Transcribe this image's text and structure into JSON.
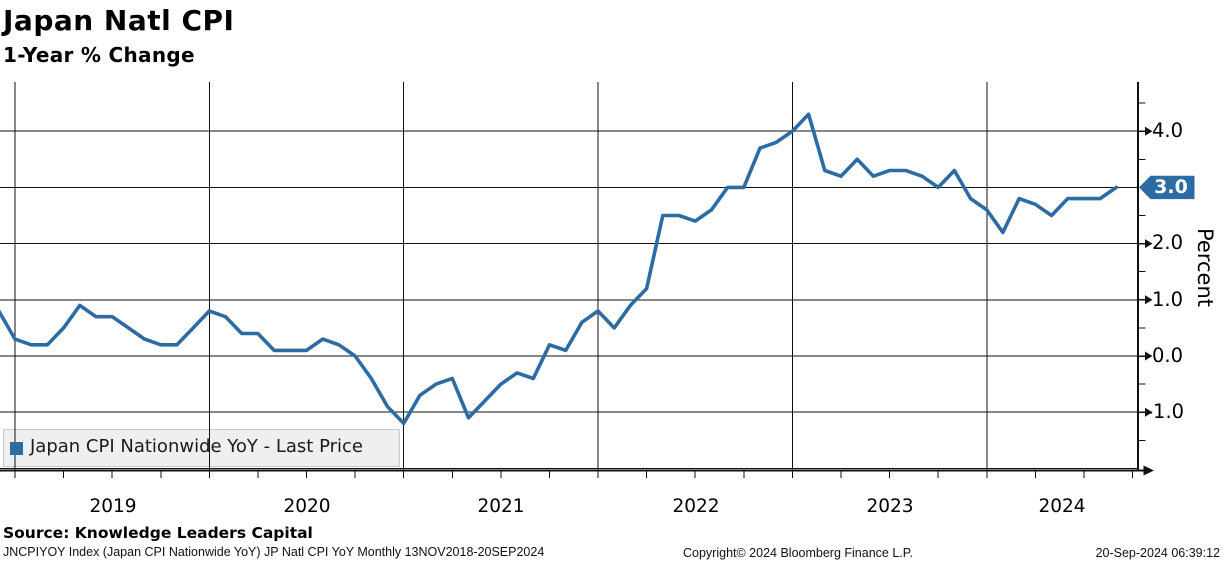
{
  "header": {
    "title": "Japan Natl CPI",
    "subtitle": "1-Year % Change"
  },
  "chart_data": {
    "type": "line",
    "title": "Japan Natl CPI",
    "subtitle": "1-Year % Change",
    "ylabel": "Percent",
    "grid": true,
    "ylim": [
      -2.05,
      4.88
    ],
    "x_tick_labels": [
      "2019",
      "2020",
      "2021",
      "2022",
      "2023",
      "2024"
    ],
    "y_tick_labels": [
      "4.0",
      "3.0",
      "2.0",
      "1.0",
      "0.0",
      "-1.0"
    ],
    "y_major_ticks": [
      4.0,
      3.0,
      2.0,
      1.0,
      0.0,
      -1.0
    ],
    "y_minor_ticks": [
      4.5,
      3.5,
      2.5,
      1.5,
      0.5,
      -0.5,
      -1.5
    ],
    "last_price": "3.0",
    "line_color": "#2d6ba3",
    "legend": {
      "label": "Japan CPI Nationwide YoY - Last Price",
      "position": "bottom-left"
    },
    "series": [
      {
        "name": "Japan CPI Nationwide YoY - Last Price",
        "start_month": "2018-11",
        "interval": "monthly",
        "values": [
          0.8,
          0.3,
          0.2,
          0.2,
          0.5,
          0.9,
          0.7,
          0.7,
          0.5,
          0.3,
          0.2,
          0.2,
          0.5,
          0.8,
          0.7,
          0.4,
          0.4,
          0.1,
          0.1,
          0.1,
          0.3,
          0.2,
          0.0,
          -0.4,
          -0.9,
          -1.2,
          -0.7,
          -0.5,
          -0.4,
          -1.1,
          -0.8,
          -0.5,
          -0.3,
          -0.4,
          0.2,
          0.1,
          0.6,
          0.8,
          0.5,
          0.9,
          1.2,
          2.5,
          2.5,
          2.4,
          2.6,
          3.0,
          3.0,
          3.7,
          3.8,
          4.0,
          4.3,
          3.3,
          3.2,
          3.5,
          3.2,
          3.3,
          3.3,
          3.2,
          3.0,
          3.3,
          2.8,
          2.6,
          2.2,
          2.8,
          2.7,
          2.5,
          2.8,
          2.8,
          2.8,
          3.0
        ]
      }
    ]
  },
  "footer": {
    "source": "Source: Knowledge Leaders Capital",
    "description": "JNCPIYOY Index (Japan CPI Nationwide YoY) JP Natl CPI YoY  Monthly 13NOV2018-20SEP2024",
    "copyright": "Copyright© 2024 Bloomberg Finance L.P.",
    "timestamp": "20-Sep-2024 06:39:12"
  }
}
